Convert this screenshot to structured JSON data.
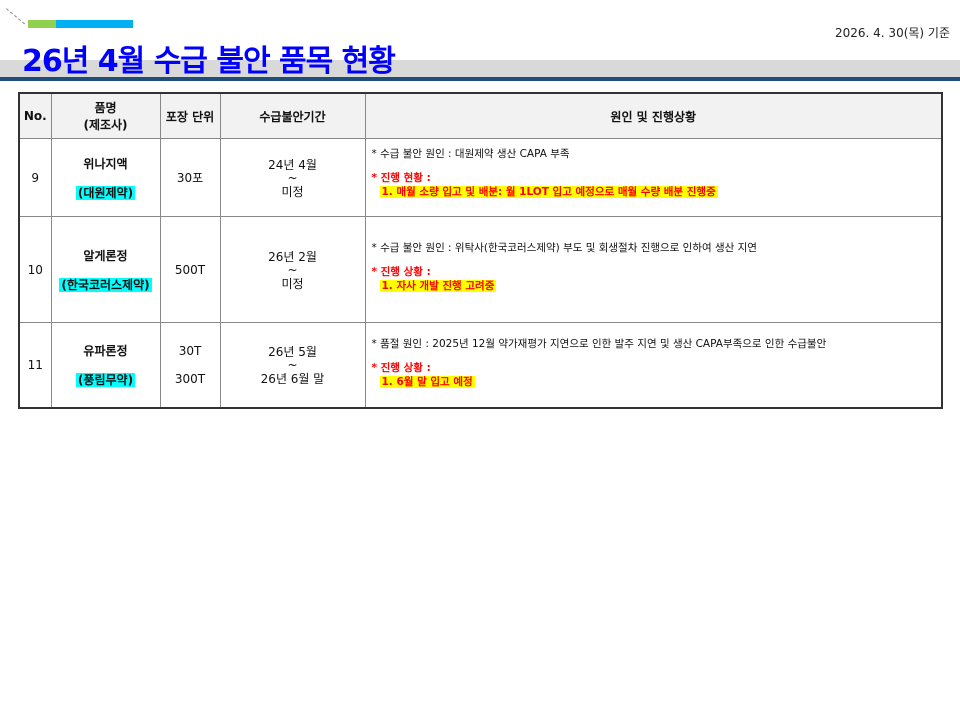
{
  "header": {
    "title": "26년 4월 수급 불안 품목 현황",
    "date": "2026. 4. 30(목) 기준",
    "accent_colors": [
      "#92d050",
      "#00b0f0",
      "#1f4e79"
    ]
  },
  "table": {
    "columns": [
      "No.",
      "품명",
      "(제조사)",
      "포장 단위",
      "수급불안기간",
      "원인 및 진행상황"
    ],
    "rows": [
      {
        "no": "9",
        "name": "위나지액",
        "maker": "(대원제약)",
        "pack": [
          "30포"
        ],
        "period": [
          "24년 4월",
          "~",
          "미정"
        ],
        "cause": "* 수급 불안 원인 : 대원제약 생산 CAPA 부족",
        "status_label": "* 진행 현황 :",
        "status": "1. 매월 소량 입고 및 배분: 월 1LOT 입고 예정으로 매월 수량 배분 진행중"
      },
      {
        "no": "10",
        "name": "알게론정",
        "maker": "(한국코러스제약)",
        "pack": [
          "500T"
        ],
        "period": [
          "26년 2월",
          "~",
          "미정"
        ],
        "cause": "* 수급 불안 원인 : 위탁사(한국코러스제약) 부도 및 회생절차 진행으로 인하여 생산 지연",
        "status_label": "* 진행 상황 :",
        "status": "1. 자사 개발 진행 고려중"
      },
      {
        "no": "11",
        "name": "유파론정",
        "maker": "(풍림무약)",
        "pack": [
          "30T",
          "300T"
        ],
        "period": [
          "26년 5월",
          "~",
          "26년 6월 말"
        ],
        "cause": "* 품절 원인 : 2025년 12월 약가재평가 지연으로 인한 발주 지연 및 생산 CAPA부족으로 인한 수급불안",
        "status_label": "* 진행 상황 :",
        "status": "1. 6월 말 입고 예정"
      }
    ]
  }
}
